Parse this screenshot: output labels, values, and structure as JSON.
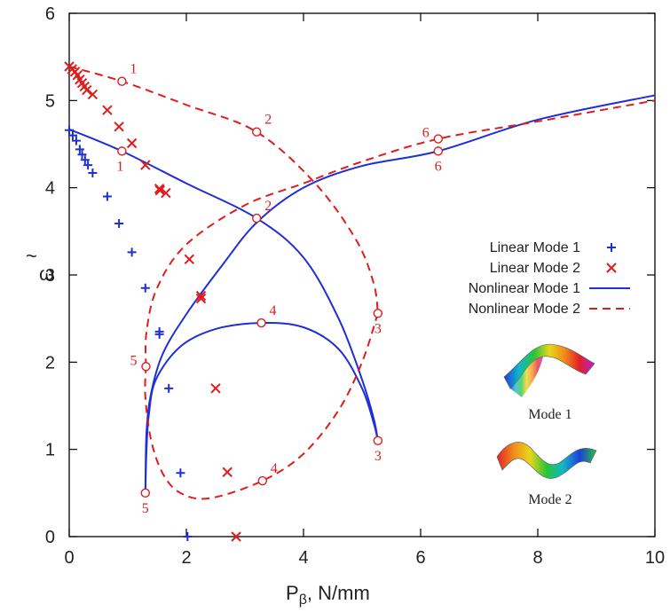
{
  "chart_data": {
    "type": "line",
    "title": "",
    "xlabel": "P",
    "xlabel_sub": "β",
    "xlabel_unit": ", N/mm",
    "ylabel": "ω",
    "ylabel_tilde": "~",
    "xlim": [
      0,
      10
    ],
    "ylim": [
      0,
      6
    ],
    "xticks": [
      0,
      2,
      4,
      6,
      8,
      10
    ],
    "yticks": [
      0,
      1,
      2,
      3,
      4,
      5,
      6
    ],
    "grid": false,
    "legend_placement": "right-middle",
    "colors": {
      "mode1": "#1f2fd6",
      "mode2": "#e01c1c",
      "axis": "#000000"
    },
    "series": [
      {
        "name": "Linear Mode 1",
        "style": "plus",
        "points": [
          [
            0.0,
            4.66
          ],
          [
            0.06,
            4.6
          ],
          [
            0.12,
            4.54
          ],
          [
            0.18,
            4.44
          ],
          [
            0.22,
            4.38
          ],
          [
            0.27,
            4.32
          ],
          [
            0.32,
            4.26
          ],
          [
            0.4,
            4.17
          ],
          [
            0.65,
            3.9
          ],
          [
            0.85,
            3.59
          ],
          [
            1.07,
            3.26
          ],
          [
            1.3,
            2.85
          ],
          [
            1.54,
            2.35
          ],
          [
            1.54,
            2.32
          ],
          [
            1.7,
            1.7
          ],
          [
            1.9,
            0.73
          ],
          [
            2.02,
            0.0
          ]
        ]
      },
      {
        "name": "Linear Mode 2",
        "style": "cross",
        "points": [
          [
            0.0,
            5.39
          ],
          [
            0.05,
            5.36
          ],
          [
            0.1,
            5.33
          ],
          [
            0.14,
            5.29
          ],
          [
            0.18,
            5.24
          ],
          [
            0.22,
            5.2
          ],
          [
            0.26,
            5.16
          ],
          [
            0.3,
            5.12
          ],
          [
            0.4,
            5.07
          ],
          [
            0.65,
            4.89
          ],
          [
            0.85,
            4.7
          ],
          [
            1.07,
            4.51
          ],
          [
            1.3,
            4.26
          ],
          [
            1.55,
            3.97
          ],
          [
            1.54,
            3.99
          ],
          [
            1.65,
            3.94
          ],
          [
            2.05,
            3.18
          ],
          [
            2.25,
            2.76
          ],
          [
            2.25,
            2.73
          ],
          [
            2.5,
            1.7
          ],
          [
            2.7,
            0.74
          ],
          [
            2.85,
            0.0
          ]
        ]
      },
      {
        "name": "Nonlinear Mode 1",
        "style": "solid",
        "curves": [
          [
            [
              0.0,
              4.67
            ],
            [
              0.9,
              4.42
            ],
            [
              2.0,
              4.05
            ],
            [
              3.2,
              3.65
            ],
            [
              4.0,
              3.2
            ],
            [
              4.6,
              2.5
            ],
            [
              5.0,
              1.8
            ],
            [
              5.2,
              1.35
            ],
            [
              5.27,
              1.1
            ]
          ],
          [
            [
              1.3,
              0.5
            ],
            [
              1.32,
              1.0
            ],
            [
              1.36,
              1.4
            ],
            [
              1.48,
              1.8
            ],
            [
              1.9,
              2.18
            ],
            [
              2.5,
              2.38
            ],
            [
              3.28,
              2.45
            ],
            [
              4.0,
              2.4
            ],
            [
              4.6,
              2.15
            ],
            [
              5.0,
              1.7
            ],
            [
              5.2,
              1.3
            ],
            [
              5.27,
              1.1
            ]
          ],
          [
            [
              1.3,
              0.5
            ],
            [
              1.32,
              1.2
            ],
            [
              1.4,
              1.65
            ],
            [
              1.6,
              2.1
            ],
            [
              2.0,
              2.55
            ],
            [
              2.6,
              3.1
            ],
            [
              3.2,
              3.6
            ],
            [
              4.0,
              4.0
            ],
            [
              5.0,
              4.25
            ],
            [
              6.3,
              4.42
            ],
            [
              8.0,
              4.78
            ],
            [
              10.0,
              5.06
            ]
          ]
        ],
        "markers": [
          [
            0.9,
            4.42,
            "1"
          ],
          [
            3.2,
            3.65,
            "2"
          ],
          [
            5.27,
            1.1,
            "3"
          ],
          [
            3.28,
            2.45,
            "4"
          ],
          [
            1.3,
            0.5,
            "5"
          ],
          [
            6.3,
            4.42,
            "6"
          ]
        ]
      },
      {
        "name": "Nonlinear Mode 2",
        "style": "dashed",
        "curves": [
          [
            [
              0.0,
              5.39
            ],
            [
              0.9,
              5.22
            ],
            [
              2.0,
              4.95
            ],
            [
              3.2,
              4.64
            ],
            [
              4.2,
              4.05
            ],
            [
              4.9,
              3.4
            ],
            [
              5.2,
              2.9
            ],
            [
              5.27,
              2.56
            ]
          ],
          [
            [
              5.27,
              2.56
            ],
            [
              5.0,
              2.0
            ],
            [
              4.6,
              1.45
            ],
            [
              4.0,
              0.95
            ],
            [
              3.3,
              0.64
            ],
            [
              2.4,
              0.44
            ],
            [
              1.9,
              0.5
            ],
            [
              1.6,
              0.72
            ],
            [
              1.4,
              1.1
            ],
            [
              1.3,
              1.6
            ],
            [
              1.31,
              1.95
            ]
          ],
          [
            [
              1.31,
              1.95
            ],
            [
              1.32,
              2.35
            ],
            [
              1.5,
              2.85
            ],
            [
              2.0,
              3.35
            ],
            [
              3.0,
              3.8
            ],
            [
              4.0,
              4.05
            ],
            [
              5.0,
              4.3
            ],
            [
              6.3,
              4.56
            ],
            [
              8.0,
              4.76
            ],
            [
              10.0,
              5.0
            ]
          ]
        ],
        "markers": [
          [
            0.9,
            5.22,
            "1"
          ],
          [
            3.2,
            4.64,
            "2"
          ],
          [
            5.27,
            2.56,
            "3"
          ],
          [
            3.3,
            0.64,
            "4"
          ],
          [
            1.31,
            1.95,
            "5"
          ],
          [
            6.3,
            4.56,
            "6"
          ]
        ]
      }
    ],
    "insets": [
      {
        "label": "Mode 1",
        "colors": [
          "#1c3fd9",
          "#12b6c9",
          "#27c43a",
          "#e8d61a",
          "#f08c1a",
          "#e0212a",
          "#b81fd1"
        ]
      },
      {
        "label": "Mode 2",
        "colors": [
          "#e0212a",
          "#f08c1a",
          "#e8d61a",
          "#27c43a",
          "#12b6c9",
          "#1c3fd9",
          "#27c43a"
        ]
      }
    ]
  }
}
